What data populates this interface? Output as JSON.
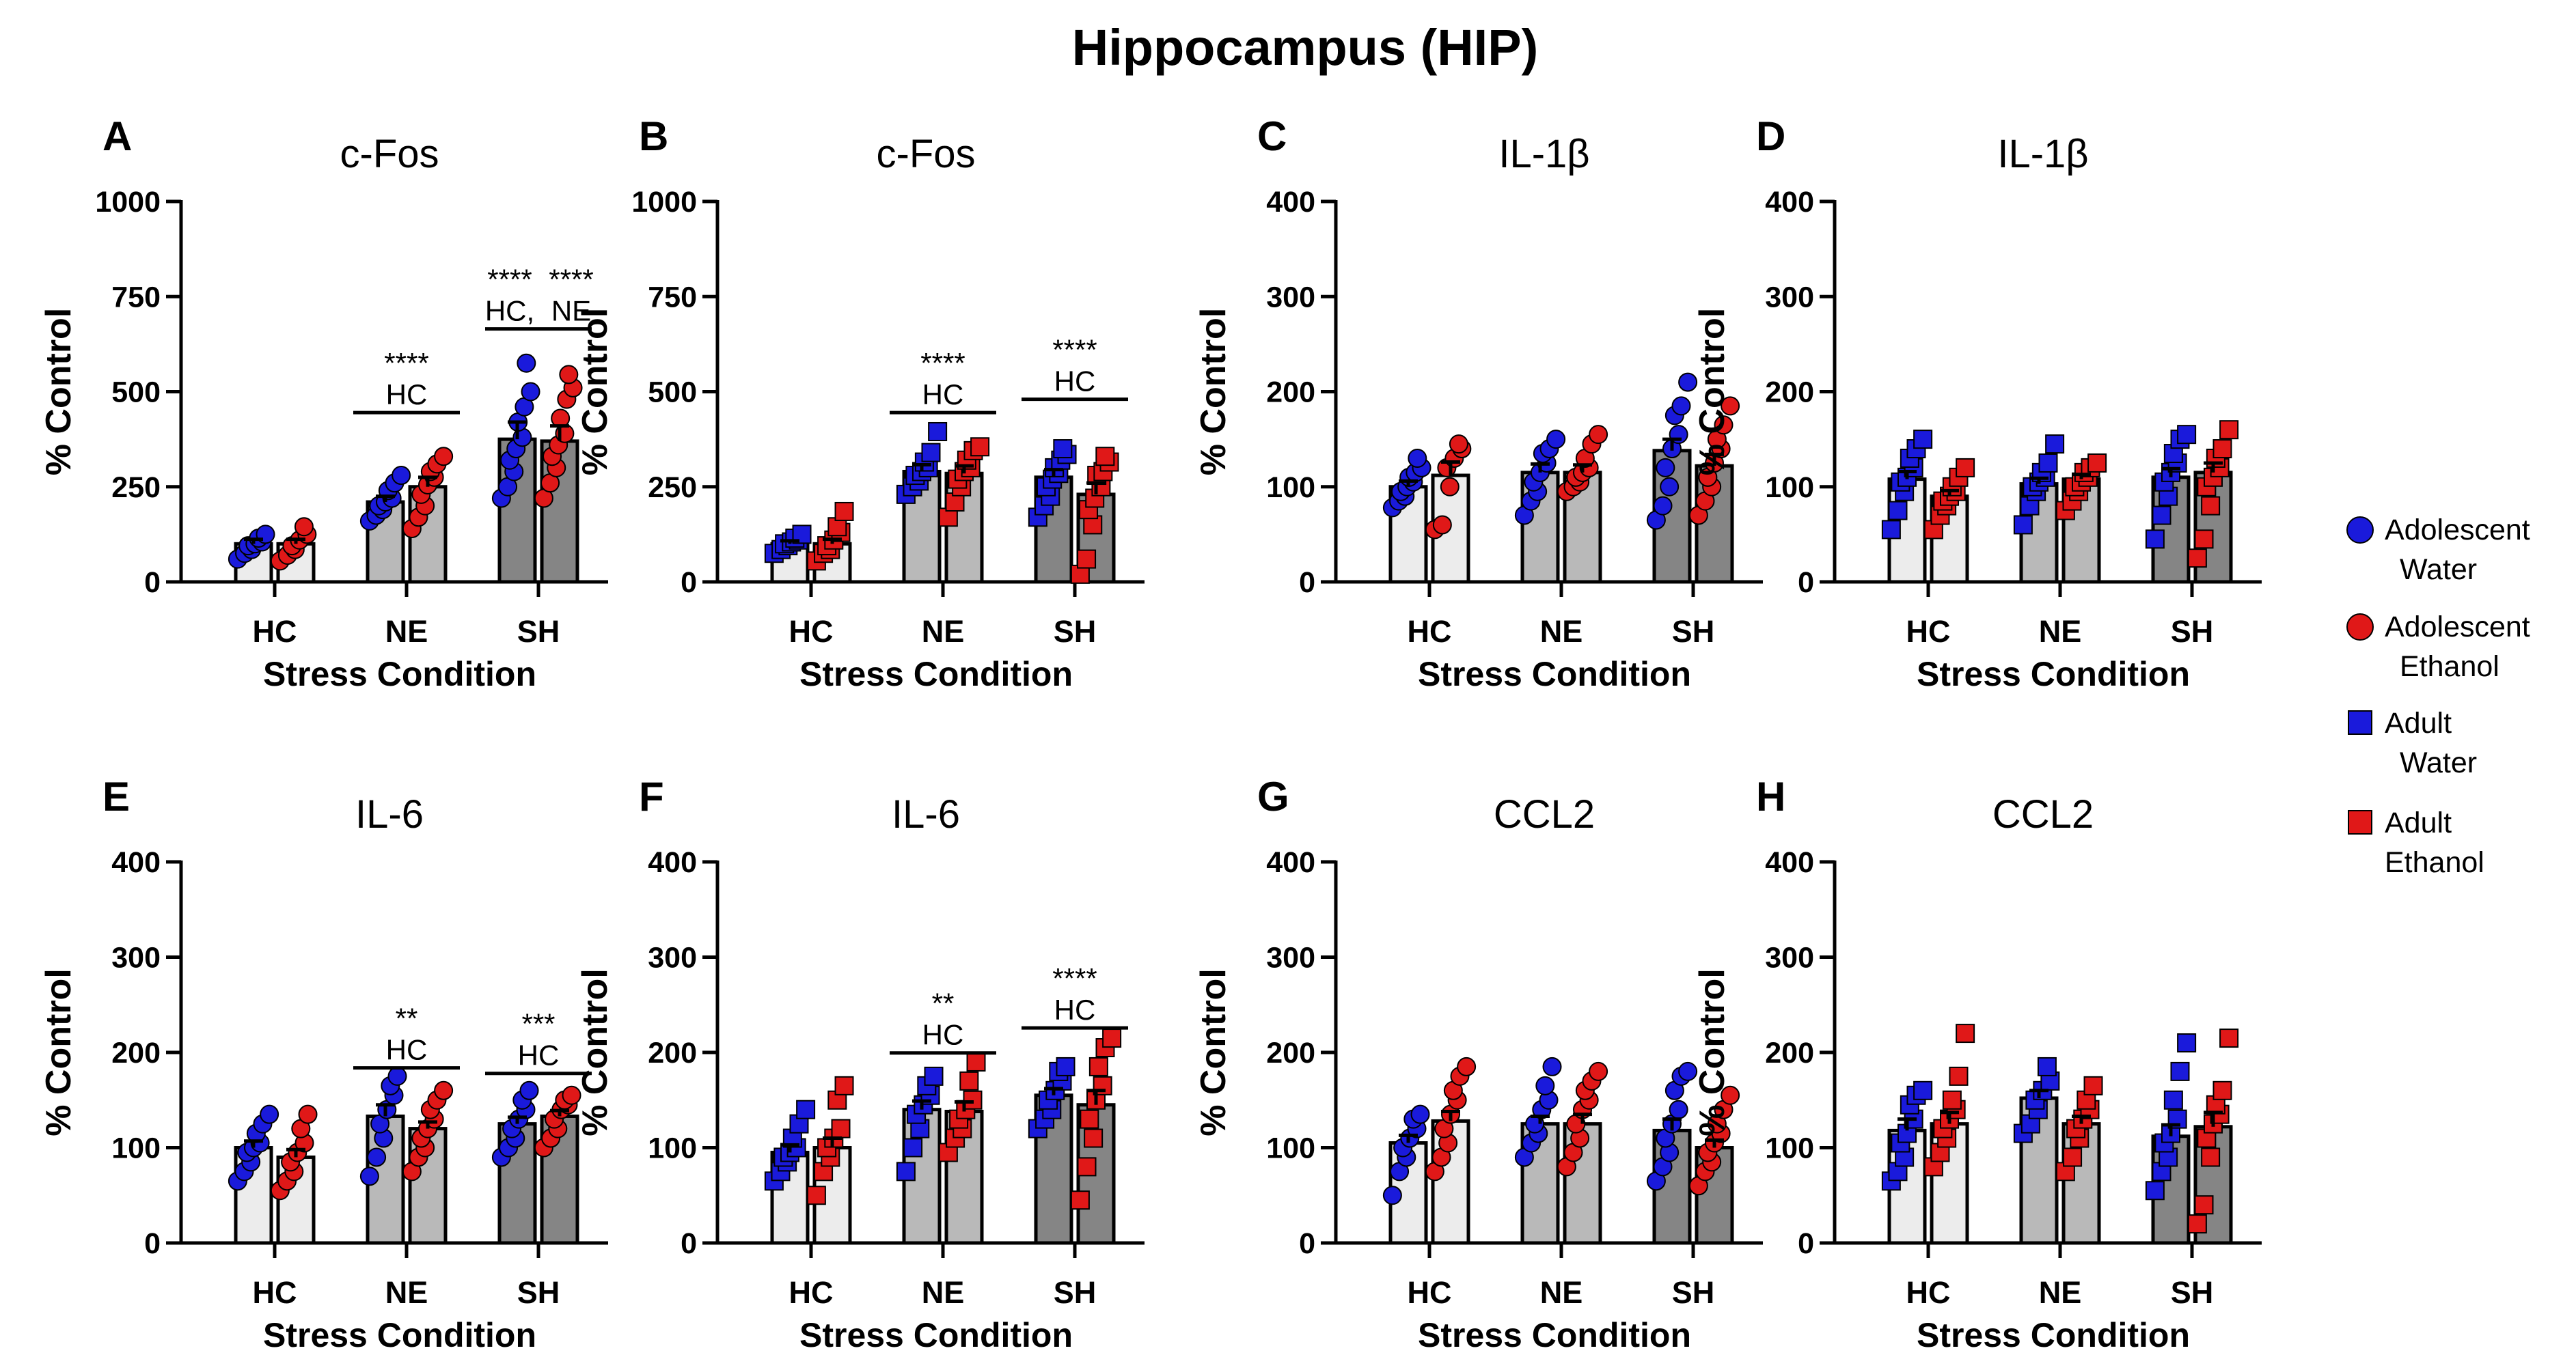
{
  "figure_title": "Hippocampus (HIP)",
  "legend": {
    "items": [
      {
        "line1": "Adolescent",
        "line2": "Water",
        "color": "#1a1adb",
        "marker": "circle"
      },
      {
        "line1": "Adolescent",
        "line2": "Ethanol",
        "color": "#e01818",
        "marker": "circle"
      },
      {
        "line1": "Adult",
        "line2": "Water",
        "color": "#1a1adb",
        "marker": "square"
      },
      {
        "line1": "Adult",
        "line2": "Ethanol",
        "color": "#e01818",
        "marker": "square"
      }
    ]
  },
  "colors": {
    "water": "#1a1adb",
    "ethanol": "#e01818",
    "bar_hc": "#ececec",
    "bar_ne": "#b9b9b9",
    "bar_sh": "#858585"
  },
  "chart_data": [
    {
      "type": "bar",
      "letter": "A",
      "title": "c-Fos",
      "age": "Adolescent",
      "marker": "circle",
      "ylabel": "% Control",
      "xlabel": "Stress Condition",
      "ylim": [
        0,
        1000
      ],
      "yticks": [
        0,
        250,
        500,
        750,
        1000
      ],
      "categories": [
        "HC",
        "NE",
        "SH"
      ],
      "series": [
        {
          "name": "Water",
          "means": [
            100,
            210,
            375
          ],
          "sem": [
            12,
            15,
            45
          ],
          "points": [
            [
              60,
              75,
              85,
              95,
              100,
              105,
              115,
              125
            ],
            [
              160,
              175,
              190,
              200,
              210,
              220,
              240,
              260,
              280
            ],
            [
              220,
              250,
              290,
              320,
              350,
              380,
              420,
              460,
              500,
              575
            ]
          ]
        },
        {
          "name": "Ethanol",
          "means": [
            100,
            250,
            370
          ],
          "sem": [
            12,
            25,
            40
          ],
          "points": [
            [
              55,
              70,
              85,
              95,
              110,
              125,
              145
            ],
            [
              140,
              170,
              200,
              230,
              255,
              275,
              290,
              310,
              330
            ],
            [
              220,
              260,
              300,
              330,
              360,
              390,
              430,
              480,
              510,
              545
            ]
          ]
        }
      ],
      "annotations": [
        {
          "stars": "****",
          "label": "HC",
          "from": 1,
          "to": 1
        },
        {
          "stars": "****",
          "label": "HC,",
          "from": 2,
          "to": 2,
          "part": "left"
        },
        {
          "stars": "****",
          "label": "NE",
          "from": 2,
          "to": 2,
          "part": "right"
        }
      ]
    },
    {
      "type": "bar",
      "letter": "B",
      "title": "c-Fos",
      "age": "Adult",
      "marker": "square",
      "ylabel": "% Control",
      "xlabel": "Stress Condition",
      "ylim": [
        0,
        1000
      ],
      "yticks": [
        0,
        250,
        500,
        750,
        1000
      ],
      "categories": [
        "HC",
        "NE",
        "SH"
      ],
      "series": [
        {
          "name": "Water",
          "means": [
            100,
            290,
            275
          ],
          "sem": [
            8,
            18,
            20
          ],
          "points": [
            [
              75,
              85,
              95,
              100,
              105,
              110,
              115,
              125
            ],
            [
              230,
              250,
              265,
              280,
              290,
              300,
              315,
              340,
              395
            ],
            [
              170,
              200,
              225,
              250,
              270,
              285,
              300,
              320,
              335,
              350
            ]
          ]
        },
        {
          "name": "Ethanol",
          "means": [
            100,
            285,
            230
          ],
          "sem": [
            12,
            20,
            30
          ],
          "points": [
            [
              55,
              75,
              85,
              95,
              110,
              130,
              145,
              185
            ],
            [
              170,
              210,
              250,
              270,
              290,
              300,
              320,
              345,
              355
            ],
            [
              20,
              60,
              150,
              190,
              220,
              250,
              280,
              290,
              315,
              330
            ]
          ]
        }
      ],
      "annotations": [
        {
          "stars": "****",
          "label": "HC",
          "from": 1,
          "to": 1
        },
        {
          "stars": "****",
          "label": "HC",
          "from": 2,
          "to": 2
        }
      ]
    },
    {
      "type": "bar",
      "letter": "C",
      "title": "IL-1β",
      "age": "Adolescent",
      "marker": "circle",
      "ylabel": "% Control",
      "xlabel": "Stress Condition",
      "ylim": [
        0,
        400
      ],
      "yticks": [
        0,
        100,
        200,
        300,
        400
      ],
      "categories": [
        "HC",
        "NE",
        "SH"
      ],
      "series": [
        {
          "name": "Water",
          "means": [
            100,
            115,
            138
          ],
          "sem": [
            6,
            9,
            12
          ],
          "points": [
            [
              78,
              85,
              90,
              95,
              100,
              105,
              110,
              115,
              120,
              130
            ],
            [
              70,
              85,
              95,
              105,
              115,
              125,
              135,
              140,
              150
            ],
            [
              65,
              80,
              100,
              120,
              140,
              155,
              175,
              185,
              210
            ]
          ]
        },
        {
          "name": "Ethanol",
          "means": [
            112,
            115,
            122
          ],
          "sem": [
            14,
            8,
            12
          ],
          "points": [
            [
              55,
              60,
              100,
              120,
              130,
              140,
              145
            ],
            [
              95,
              100,
              105,
              110,
              115,
              120,
              130,
              145,
              155
            ],
            [
              70,
              85,
              100,
              110,
              125,
              140,
              150,
              165,
              185
            ]
          ]
        }
      ],
      "annotations": []
    },
    {
      "type": "bar",
      "letter": "D",
      "title": "IL-1β",
      "age": "Adult",
      "marker": "square",
      "ylabel": "% Control",
      "xlabel": "Stress Condition",
      "ylim": [
        0,
        400
      ],
      "yticks": [
        0,
        100,
        200,
        300,
        400
      ],
      "categories": [
        "HC",
        "NE",
        "SH"
      ],
      "series": [
        {
          "name": "Water",
          "means": [
            108,
            103,
            110
          ],
          "sem": [
            8,
            6,
            9
          ],
          "points": [
            [
              55,
              75,
              95,
              105,
              110,
              120,
              130,
              140,
              150
            ],
            [
              60,
              80,
              95,
              100,
              105,
              110,
              115,
              125,
              145
            ],
            [
              45,
              70,
              90,
              105,
              115,
              125,
              135,
              150,
              155
            ]
          ]
        },
        {
          "name": "Ethanol",
          "means": [
            90,
            108,
            115
          ],
          "sem": [
            6,
            5,
            10
          ],
          "points": [
            [
              55,
              70,
              80,
              85,
              90,
              95,
              100,
              110,
              120
            ],
            [
              75,
              85,
              95,
              100,
              105,
              110,
              115,
              120,
              125
            ],
            [
              25,
              45,
              80,
              100,
              110,
              120,
              130,
              140,
              160
            ]
          ]
        }
      ],
      "annotations": []
    },
    {
      "type": "bar",
      "letter": "E",
      "title": "IL-6",
      "age": "Adolescent",
      "marker": "circle",
      "ylabel": "% Control",
      "xlabel": "Stress Condition",
      "ylim": [
        0,
        400
      ],
      "yticks": [
        0,
        100,
        200,
        300,
        400
      ],
      "categories": [
        "HC",
        "NE",
        "SH"
      ],
      "series": [
        {
          "name": "Water",
          "means": [
            100,
            133,
            125
          ],
          "sem": [
            7,
            12,
            7
          ],
          "points": [
            [
              65,
              75,
              85,
              95,
              100,
              105,
              115,
              125,
              135
            ],
            [
              70,
              90,
              110,
              125,
              140,
              155,
              165,
              175
            ],
            [
              90,
              100,
              110,
              120,
              130,
              140,
              150,
              160
            ]
          ]
        },
        {
          "name": "Ethanol",
          "means": [
            90,
            120,
            133
          ],
          "sem": [
            8,
            7,
            6
          ],
          "points": [
            [
              55,
              65,
              75,
              85,
              95,
              105,
              120,
              135
            ],
            [
              75,
              90,
              100,
              110,
              120,
              130,
              140,
              150,
              160
            ],
            [
              100,
              110,
              120,
              130,
              140,
              145,
              150,
              155
            ]
          ]
        }
      ],
      "annotations": [
        {
          "stars": "**",
          "label": "HC",
          "from": 1,
          "to": 1
        },
        {
          "stars": "***",
          "label": "HC",
          "from": 2,
          "to": 2
        }
      ]
    },
    {
      "type": "bar",
      "letter": "F",
      "title": "IL-6",
      "age": "Adult",
      "marker": "square",
      "ylabel": "% Control",
      "xlabel": "Stress Condition",
      "ylim": [
        0,
        400
      ],
      "yticks": [
        0,
        100,
        200,
        300,
        400
      ],
      "categories": [
        "HC",
        "NE",
        "SH"
      ],
      "series": [
        {
          "name": "Water",
          "means": [
            95,
            140,
            155
          ],
          "sem": [
            8,
            9,
            7
          ],
          "points": [
            [
              65,
              75,
              85,
              90,
              95,
              100,
              110,
              125,
              140
            ],
            [
              75,
              100,
              120,
              135,
              145,
              155,
              165,
              175
            ],
            [
              120,
              130,
              140,
              150,
              160,
              170,
              180,
              185
            ]
          ]
        },
        {
          "name": "Ethanol",
          "means": [
            100,
            138,
            145
          ],
          "sem": [
            10,
            10,
            15
          ],
          "points": [
            [
              50,
              75,
              90,
              100,
              110,
              120,
              150,
              165
            ],
            [
              95,
              110,
              120,
              130,
              140,
              150,
              170,
              190
            ],
            [
              45,
              80,
              110,
              130,
              150,
              165,
              185,
              205,
              215
            ]
          ]
        }
      ],
      "annotations": [
        {
          "stars": "**",
          "label": "HC",
          "from": 1,
          "to": 1
        },
        {
          "stars": "****",
          "label": "HC",
          "from": 2,
          "to": 2
        }
      ]
    },
    {
      "type": "bar",
      "letter": "G",
      "title": "CCL2",
      "age": "Adolescent",
      "marker": "circle",
      "ylabel": "% Control",
      "xlabel": "Stress Condition",
      "ylim": [
        0,
        400
      ],
      "yticks": [
        0,
        100,
        200,
        300,
        400
      ],
      "categories": [
        "HC",
        "NE",
        "SH"
      ],
      "series": [
        {
          "name": "Water",
          "means": [
            105,
            125,
            118
          ],
          "sem": [
            8,
            8,
            12
          ],
          "points": [
            [
              50,
              75,
              90,
              100,
              110,
              120,
              130,
              135
            ],
            [
              90,
              105,
              115,
              125,
              140,
              150,
              165,
              185
            ],
            [
              65,
              80,
              95,
              110,
              125,
              140,
              160,
              175,
              180
            ]
          ]
        },
        {
          "name": "Ethanol",
          "means": [
            128,
            125,
            100
          ],
          "sem": [
            10,
            10,
            8
          ],
          "points": [
            [
              75,
              90,
              105,
              120,
              135,
              150,
              160,
              175,
              185
            ],
            [
              80,
              95,
              110,
              125,
              140,
              150,
              160,
              170,
              180
            ],
            [
              60,
              75,
              85,
              95,
              105,
              115,
              125,
              140,
              155
            ]
          ]
        }
      ],
      "annotations": []
    },
    {
      "type": "bar",
      "letter": "H",
      "title": "CCL2",
      "age": "Adult",
      "marker": "square",
      "ylabel": "% Control",
      "xlabel": "Stress Condition",
      "ylim": [
        0,
        400
      ],
      "yticks": [
        0,
        100,
        200,
        300,
        400
      ],
      "categories": [
        "HC",
        "NE",
        "SH"
      ],
      "series": [
        {
          "name": "Water",
          "means": [
            118,
            152,
            112
          ],
          "sem": [
            12,
            8,
            12
          ],
          "points": [
            [
              65,
              75,
              90,
              105,
              115,
              130,
              145,
              155,
              160
            ],
            [
              115,
              125,
              140,
              150,
              160,
              170,
              185
            ],
            [
              55,
              75,
              90,
              105,
              115,
              130,
              150,
              180,
              210
            ]
          ]
        },
        {
          "name": "Ethanol",
          "means": [
            125,
            125,
            122
          ],
          "sem": [
            12,
            8,
            15
          ],
          "points": [
            [
              80,
              95,
              110,
              120,
              130,
              140,
              150,
              175,
              220
            ],
            [
              75,
              90,
              110,
              120,
              130,
              140,
              150,
              165
            ],
            [
              20,
              40,
              90,
              110,
              125,
              135,
              145,
              160,
              215
            ]
          ]
        }
      ],
      "annotations": []
    }
  ]
}
